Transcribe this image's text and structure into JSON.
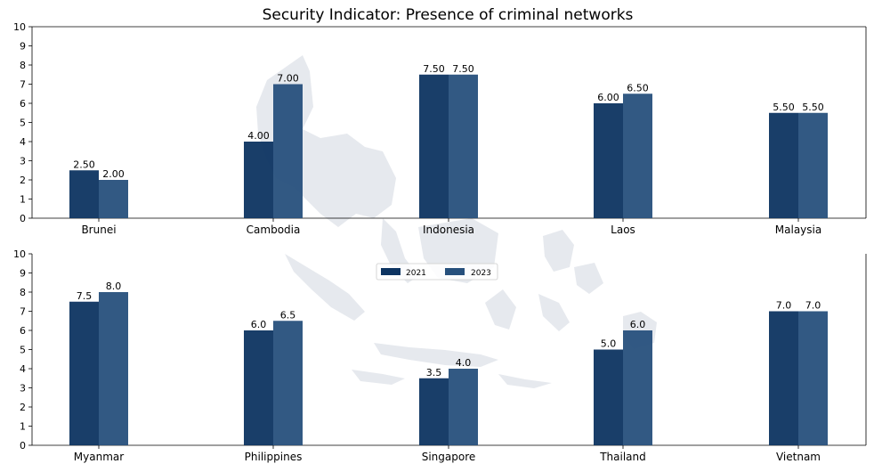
{
  "chart_data": {
    "type": "bar",
    "title": "Security Indicator: Presence of criminal networks",
    "ylim": [
      0,
      10
    ],
    "yticks": [
      0,
      1,
      2,
      3,
      4,
      5,
      6,
      7,
      8,
      9,
      10
    ],
    "legend": {
      "placement": "center",
      "entries": [
        {
          "name": "2021",
          "color": "#0d3461"
        },
        {
          "name": "2023",
          "color": "#27507c"
        }
      ]
    },
    "panels": [
      {
        "categories": [
          "Brunei",
          "Cambodia",
          "Indonesia",
          "Laos",
          "Malaysia"
        ],
        "series": [
          {
            "name": "2021",
            "values": [
              2.5,
              4.0,
              7.5,
              6.0,
              5.5
            ]
          },
          {
            "name": "2023",
            "values": [
              2.0,
              7.0,
              7.5,
              6.5,
              5.5
            ]
          }
        ],
        "value_labels": [
          [
            "2.50",
            "4.00",
            "7.50",
            "6.00",
            "5.50"
          ],
          [
            "2.00",
            "7.00",
            "7.50",
            "6.50",
            "5.50"
          ]
        ]
      },
      {
        "categories": [
          "Myanmar",
          "Philippines",
          "Singapore",
          "Thailand",
          "Vietnam"
        ],
        "series": [
          {
            "name": "2021",
            "values": [
              7.5,
              6.0,
              3.5,
              5.0,
              7.0
            ]
          },
          {
            "name": "2023",
            "values": [
              8.0,
              6.5,
              4.0,
              6.0,
              7.0
            ]
          }
        ],
        "value_labels": [
          [
            "7.5",
            "6.0",
            "3.5",
            "5.0",
            "7.0"
          ],
          [
            "8.0",
            "6.5",
            "4.0",
            "6.0",
            "7.0"
          ]
        ]
      }
    ]
  },
  "colors": {
    "series_2021": "#0d3461",
    "series_2023": "#27507c",
    "map_background": "#e6e9ee"
  }
}
